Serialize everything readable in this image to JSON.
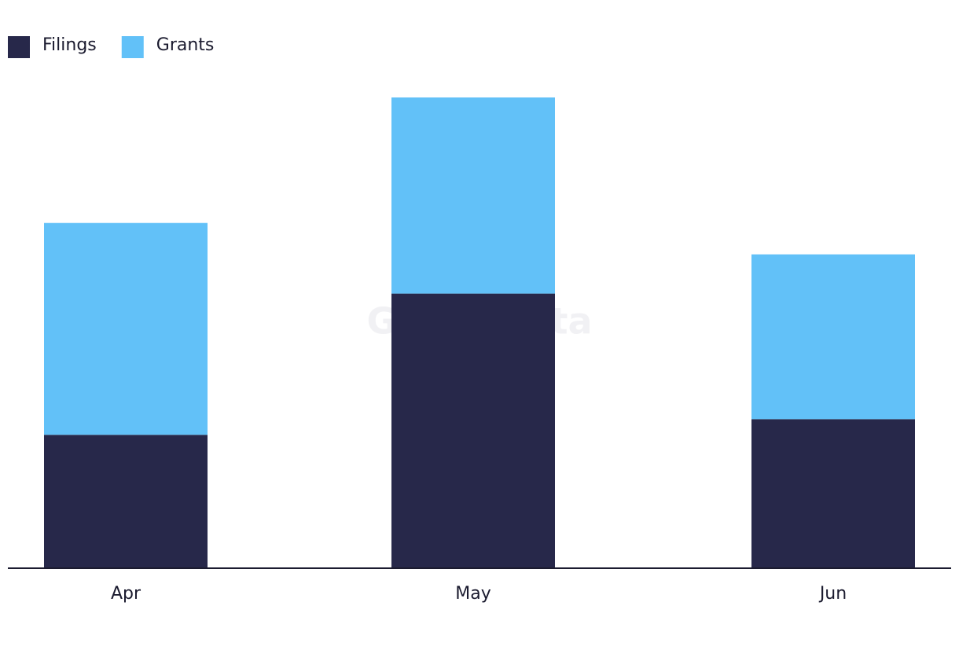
{
  "chart_data": {
    "type": "stacked_bar",
    "watermark": "GlobalData",
    "categories": [
      "Apr",
      "May",
      "Jun"
    ],
    "series": [
      {
        "name": "Filings",
        "color": "#27284a",
        "values": [
          17,
          35,
          19
        ]
      },
      {
        "name": "Grants",
        "color": "#62c1f8",
        "values": [
          27,
          25,
          21
        ]
      }
    ],
    "legend": "top-left"
  }
}
